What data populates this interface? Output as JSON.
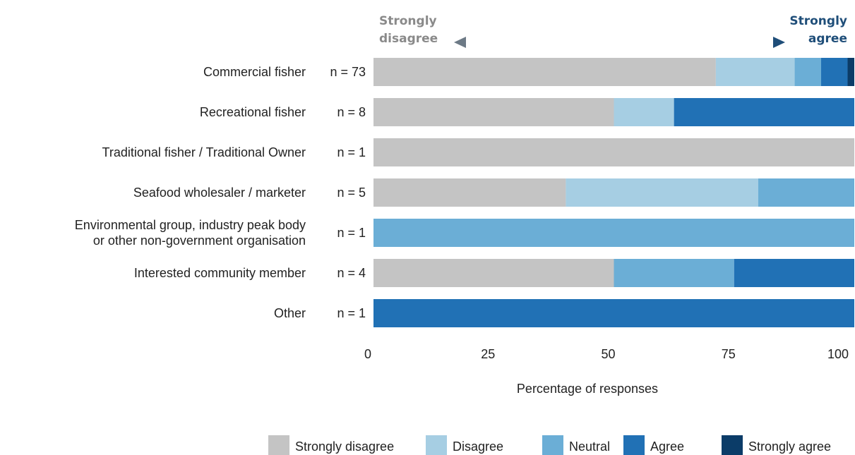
{
  "chart_data": {
    "type": "stacked_barh",
    "annotations": [
      "Strongly\ndisagree",
      "Strongly\nagree"
    ],
    "categories": [
      "Commercial fisher",
      "Recreational fisher",
      "Traditional fisher / Traditional Owner",
      "Seafood wholesaler / marketer",
      "Environmental group, industry peak body\nor other non-government organisation",
      "Interested community member",
      "Other"
    ],
    "n_labels": [
      "n = 73",
      "n = 8",
      "n = 1",
      "n = 5",
      "n = 1",
      "n = 4",
      "n = 1"
    ],
    "series": [
      {
        "name": "Strongly disagree",
        "color": "#c4c4c4",
        "values": [
          71.2,
          50,
          100,
          40,
          0,
          50,
          0
        ]
      },
      {
        "name": "Disagree",
        "color": "#a6cee3",
        "values": [
          16.4,
          12.5,
          0,
          40,
          0,
          0,
          0
        ]
      },
      {
        "name": "Neutral",
        "color": "#6baed6",
        "values": [
          5.5,
          0,
          0,
          20,
          100,
          25,
          0
        ]
      },
      {
        "name": "Agree",
        "color": "#2171b5",
        "values": [
          5.5,
          37.5,
          0,
          0,
          0,
          25,
          100
        ]
      },
      {
        "name": "Strongly agree",
        "color": "#0b3c68",
        "values": [
          1.4,
          0,
          0,
          0,
          0,
          0,
          0
        ]
      }
    ],
    "xlabel": "Percentage of responses",
    "xlim": [
      0,
      100
    ],
    "xticks": [
      0,
      25,
      50,
      75,
      100
    ]
  }
}
